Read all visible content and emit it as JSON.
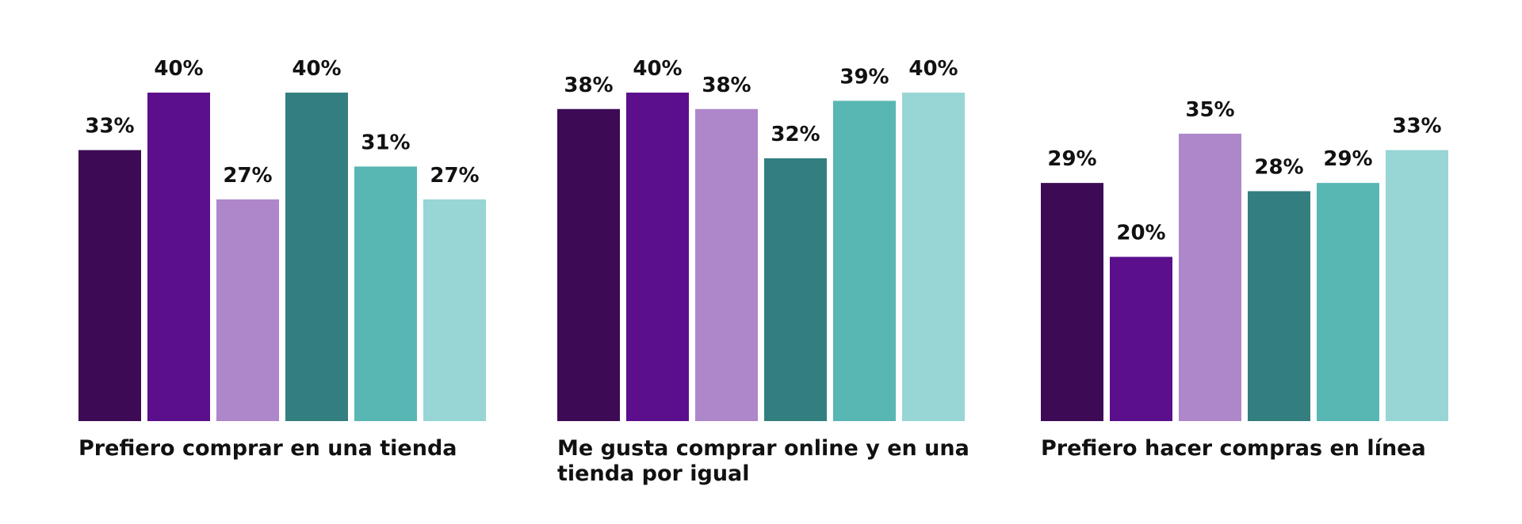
{
  "chart_data": {
    "type": "bar",
    "title": "",
    "xlabel": "",
    "ylabel": "",
    "ylim": [
      0,
      40
    ],
    "grid": false,
    "legend": "none",
    "series_colors": [
      "#3d0a55",
      "#5b0f8c",
      "#ae87cb",
      "#337f80",
      "#58b6b3",
      "#98d5d5"
    ],
    "groups": [
      {
        "category_lines": [
          "Prefiero comprar en una tienda"
        ],
        "values": [
          33,
          40,
          27,
          40,
          31,
          27
        ],
        "labels": [
          "33%",
          "40%",
          "27%",
          "40%",
          "31%",
          "27%"
        ]
      },
      {
        "category_lines": [
          "Me gusta comprar online y en una",
          "tienda por igual"
        ],
        "values": [
          38,
          40,
          38,
          32,
          39,
          40
        ],
        "labels": [
          "38%",
          "40%",
          "38%",
          "32%",
          "39%",
          "40%"
        ]
      },
      {
        "category_lines": [
          "Prefiero hacer compras en línea"
        ],
        "values": [
          29,
          20,
          35,
          28,
          29,
          33
        ],
        "labels": [
          "29%",
          "20%",
          "35%",
          "28%",
          "29%",
          "33%"
        ]
      }
    ]
  }
}
